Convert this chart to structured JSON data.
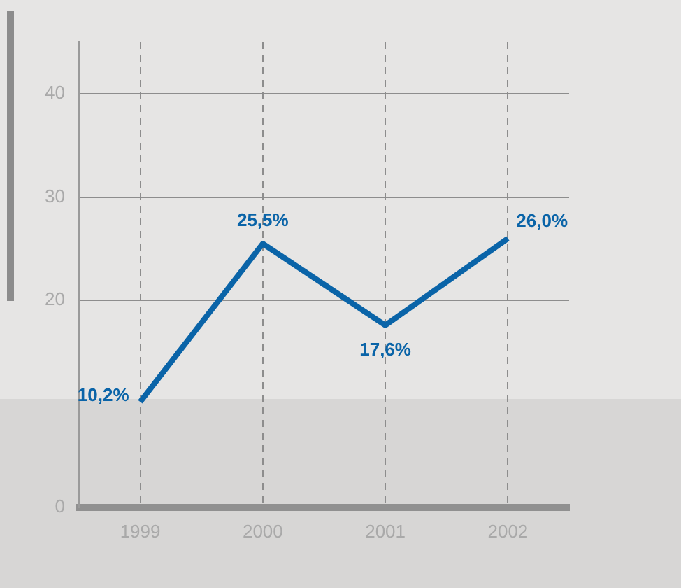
{
  "chart_data": {
    "type": "line",
    "categories": [
      "1999",
      "2000",
      "2001",
      "2002"
    ],
    "series": [
      {
        "color": "#0a64a8",
        "values": [
          10.2,
          25.5,
          17.6,
          26.0
        ],
        "value_labels": [
          "10,2%",
          "25,5%",
          "17,6%",
          "26,0%"
        ]
      }
    ],
    "ylim": [
      0,
      45
    ],
    "yticks": [
      0,
      20,
      30,
      40
    ],
    "grid": true,
    "legend": false,
    "marker": "none"
  }
}
